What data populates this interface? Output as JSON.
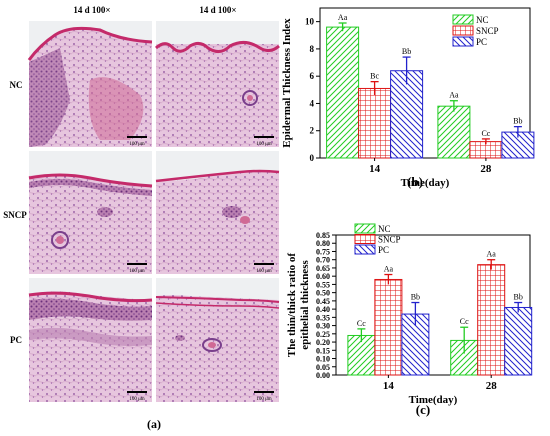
{
  "panel_a": {
    "col_headers": [
      "14 d 100×",
      "14 d 100×"
    ],
    "row_labels": [
      "NC",
      "SNCP",
      "PC"
    ],
    "scale_bar_label": "100 μm",
    "caption": "(a)"
  },
  "colors": {
    "NC": "#22cc22",
    "SNCP": "#dd1111",
    "PC": "#2222cc",
    "tissue_pink": "#d9a9c8",
    "tissue_purple": "#7a3f8c"
  },
  "chart_data": [
    {
      "type": "bar",
      "title": "",
      "caption": "(b)",
      "xlabel": "Time(day)",
      "ylabel": "Epidermal Thickness Index",
      "categories": [
        "14",
        "28"
      ],
      "ylim": [
        0,
        11
      ],
      "yticks": [
        "0",
        "2",
        "4",
        "6",
        "8",
        "10"
      ],
      "yticks_values": [
        0,
        2,
        4,
        6,
        8,
        10
      ],
      "series": [
        {
          "name": "NC",
          "values": [
            9.6,
            3.8
          ],
          "errors": [
            0.3,
            0.4
          ],
          "labels": [
            "Aa",
            "Aa"
          ]
        },
        {
          "name": "SNCP",
          "values": [
            5.1,
            1.2
          ],
          "errors": [
            0.5,
            0.2
          ],
          "labels": [
            "Bc",
            "Cc"
          ]
        },
        {
          "name": "PC",
          "values": [
            6.4,
            1.9
          ],
          "errors": [
            1.0,
            0.4
          ],
          "labels": [
            "Bb",
            "Bb"
          ]
        }
      ],
      "legend_position": "top-right",
      "grid": false
    },
    {
      "type": "bar",
      "title": "",
      "caption": "(c)",
      "xlabel": "Time(day)",
      "ylabel": "The thin/thick ratio of epithelial thickness",
      "ylabel_lines": [
        "The thin/thick ratio of",
        "epithelial thickness"
      ],
      "categories": [
        "14",
        "28"
      ],
      "ylim": [
        0,
        0.85
      ],
      "yticks": [
        "0.00",
        "0.05",
        "0.10",
        "0.15",
        "0.20",
        "0.25",
        "0.30",
        "0.35",
        "0.40",
        "0.45",
        "0.50",
        "0.55",
        "0.60",
        "0.65",
        "0.70",
        "0.75",
        "0.80",
        "0.85"
      ],
      "yticks_values": [
        0,
        0.05,
        0.1,
        0.15,
        0.2,
        0.25,
        0.3,
        0.35,
        0.4,
        0.45,
        0.5,
        0.55,
        0.6,
        0.65,
        0.7,
        0.75,
        0.8,
        0.85
      ],
      "series": [
        {
          "name": "NC",
          "values": [
            0.24,
            0.21
          ],
          "errors": [
            0.04,
            0.08
          ],
          "labels": [
            "Cc",
            "Cc"
          ]
        },
        {
          "name": "SNCP",
          "values": [
            0.58,
            0.67
          ],
          "errors": [
            0.03,
            0.03
          ],
          "labels": [
            "Aa",
            "Aa"
          ]
        },
        {
          "name": "PC",
          "values": [
            0.37,
            0.41
          ],
          "errors": [
            0.07,
            0.03
          ],
          "labels": [
            "Bb",
            "Bb"
          ]
        }
      ],
      "legend_position": "top-left",
      "grid": false
    }
  ]
}
